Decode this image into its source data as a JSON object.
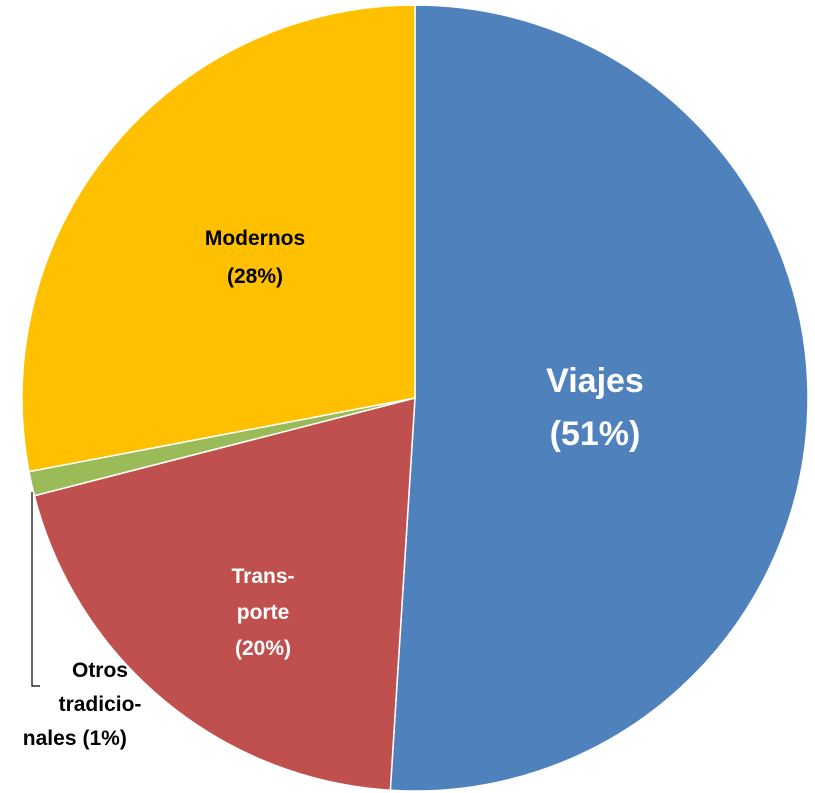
{
  "chart_data": {
    "type": "pie",
    "categories": [
      "Viajes",
      "Trans-\nporte",
      "Otros\ntradicio-\nnales",
      "Modernos"
    ],
    "values": [
      51,
      20,
      1,
      28
    ],
    "value_labels": [
      "(51%)",
      "(20%)",
      "(1%)",
      "(28%)"
    ],
    "colors": [
      "#4f81bd",
      "#c0504d",
      "#9bbb59",
      "#ffc000"
    ]
  }
}
